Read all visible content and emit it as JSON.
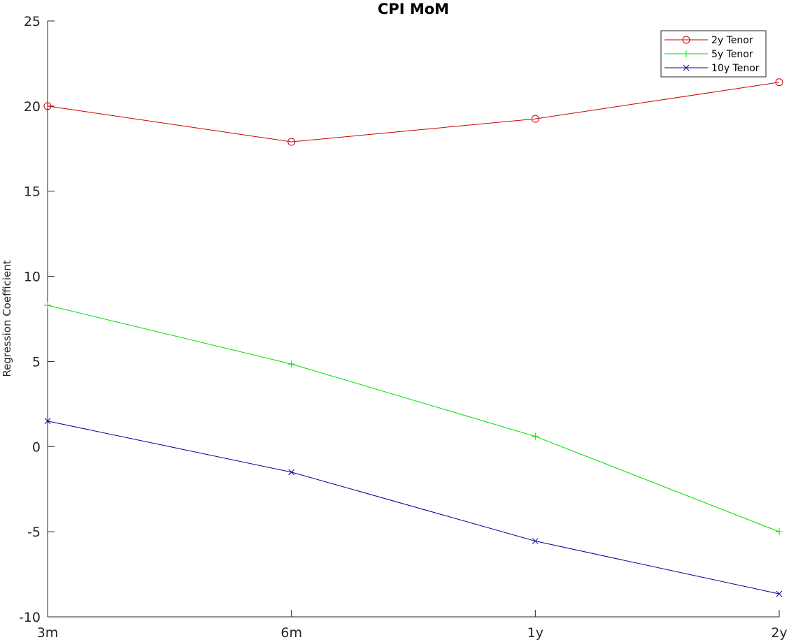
{
  "chart_data": {
    "type": "line",
    "title": "CPI MoM",
    "xlabel": "",
    "ylabel": "Regression Coefficient",
    "categories": [
      "3m",
      "6m",
      "1y",
      "2y"
    ],
    "ylim": [
      -10,
      25
    ],
    "yticks": [
      -10,
      -5,
      0,
      5,
      10,
      15,
      20,
      25
    ],
    "grid": false,
    "legend_position": "top-right",
    "series": [
      {
        "name": "2y Tenor",
        "values": [
          20.0,
          17.9,
          19.25,
          21.4
        ],
        "color": "#cc0000",
        "marker": "circle"
      },
      {
        "name": "5y Tenor",
        "values": [
          8.3,
          4.85,
          0.6,
          -5.0
        ],
        "color": "#00dd00",
        "marker": "plus"
      },
      {
        "name": "10y Tenor",
        "values": [
          1.5,
          -1.5,
          -5.55,
          -8.65
        ],
        "color": "#000099",
        "marker": "x"
      }
    ]
  }
}
